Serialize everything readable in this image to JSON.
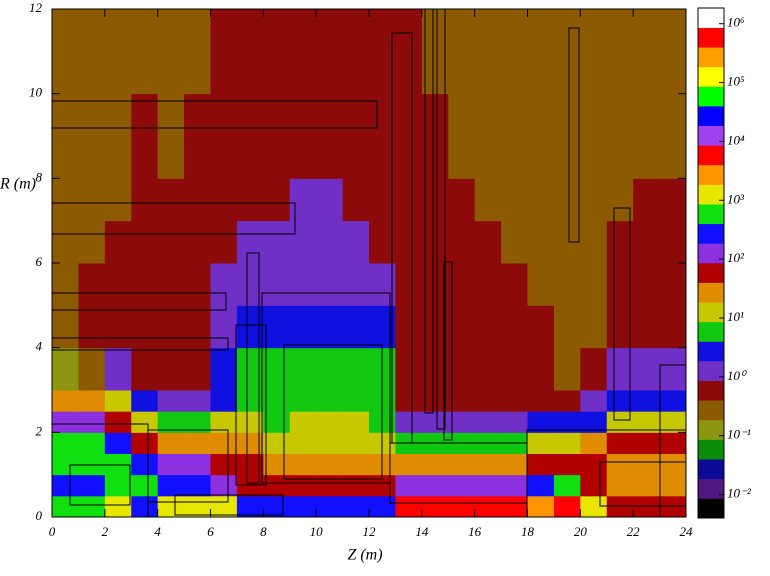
{
  "chart_data": {
    "type": "heatmap",
    "x_label": "Z (m)",
    "y_label": "R (m)",
    "xlim": [
      0,
      24
    ],
    "ylim": [
      0,
      12
    ],
    "xticks": [
      0,
      2,
      4,
      6,
      8,
      10,
      12,
      14,
      16,
      18,
      20,
      22,
      24
    ],
    "yticks": [
      0,
      2,
      4,
      6,
      8,
      10,
      12
    ],
    "xbins": [
      0,
      1,
      2,
      3,
      4,
      5,
      6,
      7,
      8,
      9,
      10,
      11,
      12,
      13,
      14,
      15,
      16,
      17,
      18,
      19,
      20,
      21,
      22,
      23,
      24
    ],
    "ybins": [
      0,
      0.5,
      1,
      1.5,
      2,
      2.5,
      3,
      4,
      5,
      6,
      7,
      8,
      10,
      12
    ],
    "log_scale": true,
    "zlim": [
      0.004,
      1850000
    ],
    "colors": [
      "#000000",
      "#501880",
      "#0a0a96",
      "#0a8c0a",
      "#8c9610",
      "#8c5a00",
      "#8c0a0a",
      "#7030c8",
      "#1010e0",
      "#10c810",
      "#c8c800",
      "#e08c00",
      "#b00000",
      "#8c30e0",
      "#1010ff",
      "#10e010",
      "#e6e600",
      "#ff9600",
      "#ff0000",
      "#a040f0",
      "#0000ff",
      "#00ff00",
      "#ffff00",
      "#ffa000",
      "#ff0000",
      "#ffffff"
    ],
    "zticks": [
      {
        "value": 0.01,
        "label": "10⁻²"
      },
      {
        "value": 0.1,
        "label": "10⁻¹"
      },
      {
        "value": 1,
        "label": "10⁰"
      },
      {
        "value": 10,
        "label": "10¹"
      },
      {
        "value": 100,
        "label": "10²"
      },
      {
        "value": 1000,
        "label": "10³"
      },
      {
        "value": 10000,
        "label": "10⁴"
      },
      {
        "value": 100000,
        "label": "10⁵"
      },
      {
        "value": 1000000,
        "label": "10⁶"
      }
    ],
    "values": [
      [
        500,
        500,
        1000,
        200,
        1000,
        1000,
        1000,
        200,
        200,
        200,
        200,
        200,
        200,
        6000,
        6000,
        6000,
        6000,
        6000,
        2500,
        6000,
        1000,
        60,
        60,
        60
      ],
      [
        200,
        200,
        500,
        500,
        200,
        200,
        100,
        60,
        60,
        60,
        60,
        60,
        60,
        100,
        100,
        100,
        100,
        100,
        200,
        500,
        60,
        30,
        30,
        30
      ],
      [
        500,
        500,
        500,
        200,
        100,
        100,
        60,
        60,
        30,
        30,
        30,
        30,
        30,
        30,
        30,
        30,
        30,
        30,
        60,
        60,
        60,
        30,
        30,
        30
      ],
      [
        500,
        500,
        200,
        60,
        30,
        30,
        30,
        30,
        15,
        15,
        15,
        15,
        15,
        6,
        6,
        6,
        6,
        6,
        15,
        15,
        30,
        60,
        60,
        60
      ],
      [
        100,
        100,
        60,
        15,
        6,
        6,
        15,
        15,
        6,
        15,
        15,
        15,
        6,
        1,
        1,
        1,
        1,
        1,
        3,
        3,
        3,
        15,
        15,
        15
      ],
      [
        30,
        30,
        15,
        3,
        1,
        1,
        3,
        6,
        6,
        6,
        6,
        6,
        6,
        0.6,
        0.6,
        0.6,
        0.6,
        0.6,
        0.6,
        0.6,
        1,
        3,
        3,
        3
      ],
      [
        0.15,
        0.3,
        1,
        0.6,
        0.6,
        0.6,
        3,
        6,
        6,
        6,
        6,
        6,
        6,
        0.6,
        0.6,
        0.6,
        0.6,
        0.6,
        0.6,
        0.3,
        0.6,
        1,
        1,
        1
      ],
      [
        0.3,
        0.6,
        0.6,
        0.6,
        0.6,
        0.6,
        1,
        3,
        3,
        3,
        3,
        3,
        3,
        0.6,
        0.6,
        0.6,
        0.6,
        0.6,
        0.6,
        0.3,
        0.3,
        0.6,
        0.6,
        0.6
      ],
      [
        0.3,
        0.6,
        0.6,
        0.6,
        0.6,
        0.6,
        1,
        1,
        1,
        1,
        1,
        1,
        1,
        0.6,
        0.6,
        0.6,
        0.6,
        0.6,
        0.3,
        0.3,
        0.3,
        0.6,
        0.6,
        0.6
      ],
      [
        0.3,
        0.3,
        0.6,
        0.6,
        0.6,
        0.6,
        0.6,
        1,
        1,
        1,
        1,
        1,
        0.6,
        0.6,
        0.6,
        0.6,
        0.6,
        0.3,
        0.3,
        0.3,
        0.3,
        0.6,
        0.6,
        0.6
      ],
      [
        0.3,
        0.3,
        0.3,
        0.6,
        0.6,
        0.6,
        0.6,
        0.6,
        0.6,
        1,
        1,
        0.6,
        0.6,
        0.6,
        0.6,
        0.6,
        0.3,
        0.3,
        0.3,
        0.3,
        0.3,
        0.3,
        0.6,
        0.6
      ],
      [
        0.3,
        0.3,
        0.3,
        0.6,
        0.3,
        0.6,
        0.6,
        0.6,
        0.6,
        0.6,
        0.6,
        0.6,
        0.6,
        0.6,
        0.6,
        0.3,
        0.3,
        0.3,
        0.3,
        0.3,
        0.3,
        0.3,
        0.3,
        0.3
      ],
      [
        0.3,
        0.3,
        0.3,
        0.3,
        0.3,
        0.3,
        0.6,
        0.6,
        0.6,
        0.6,
        0.6,
        0.6,
        0.6,
        0.6,
        0.3,
        0.3,
        0.3,
        0.3,
        0.3,
        0.3,
        0.3,
        0.3,
        0.3,
        0.3
      ]
    ]
  }
}
